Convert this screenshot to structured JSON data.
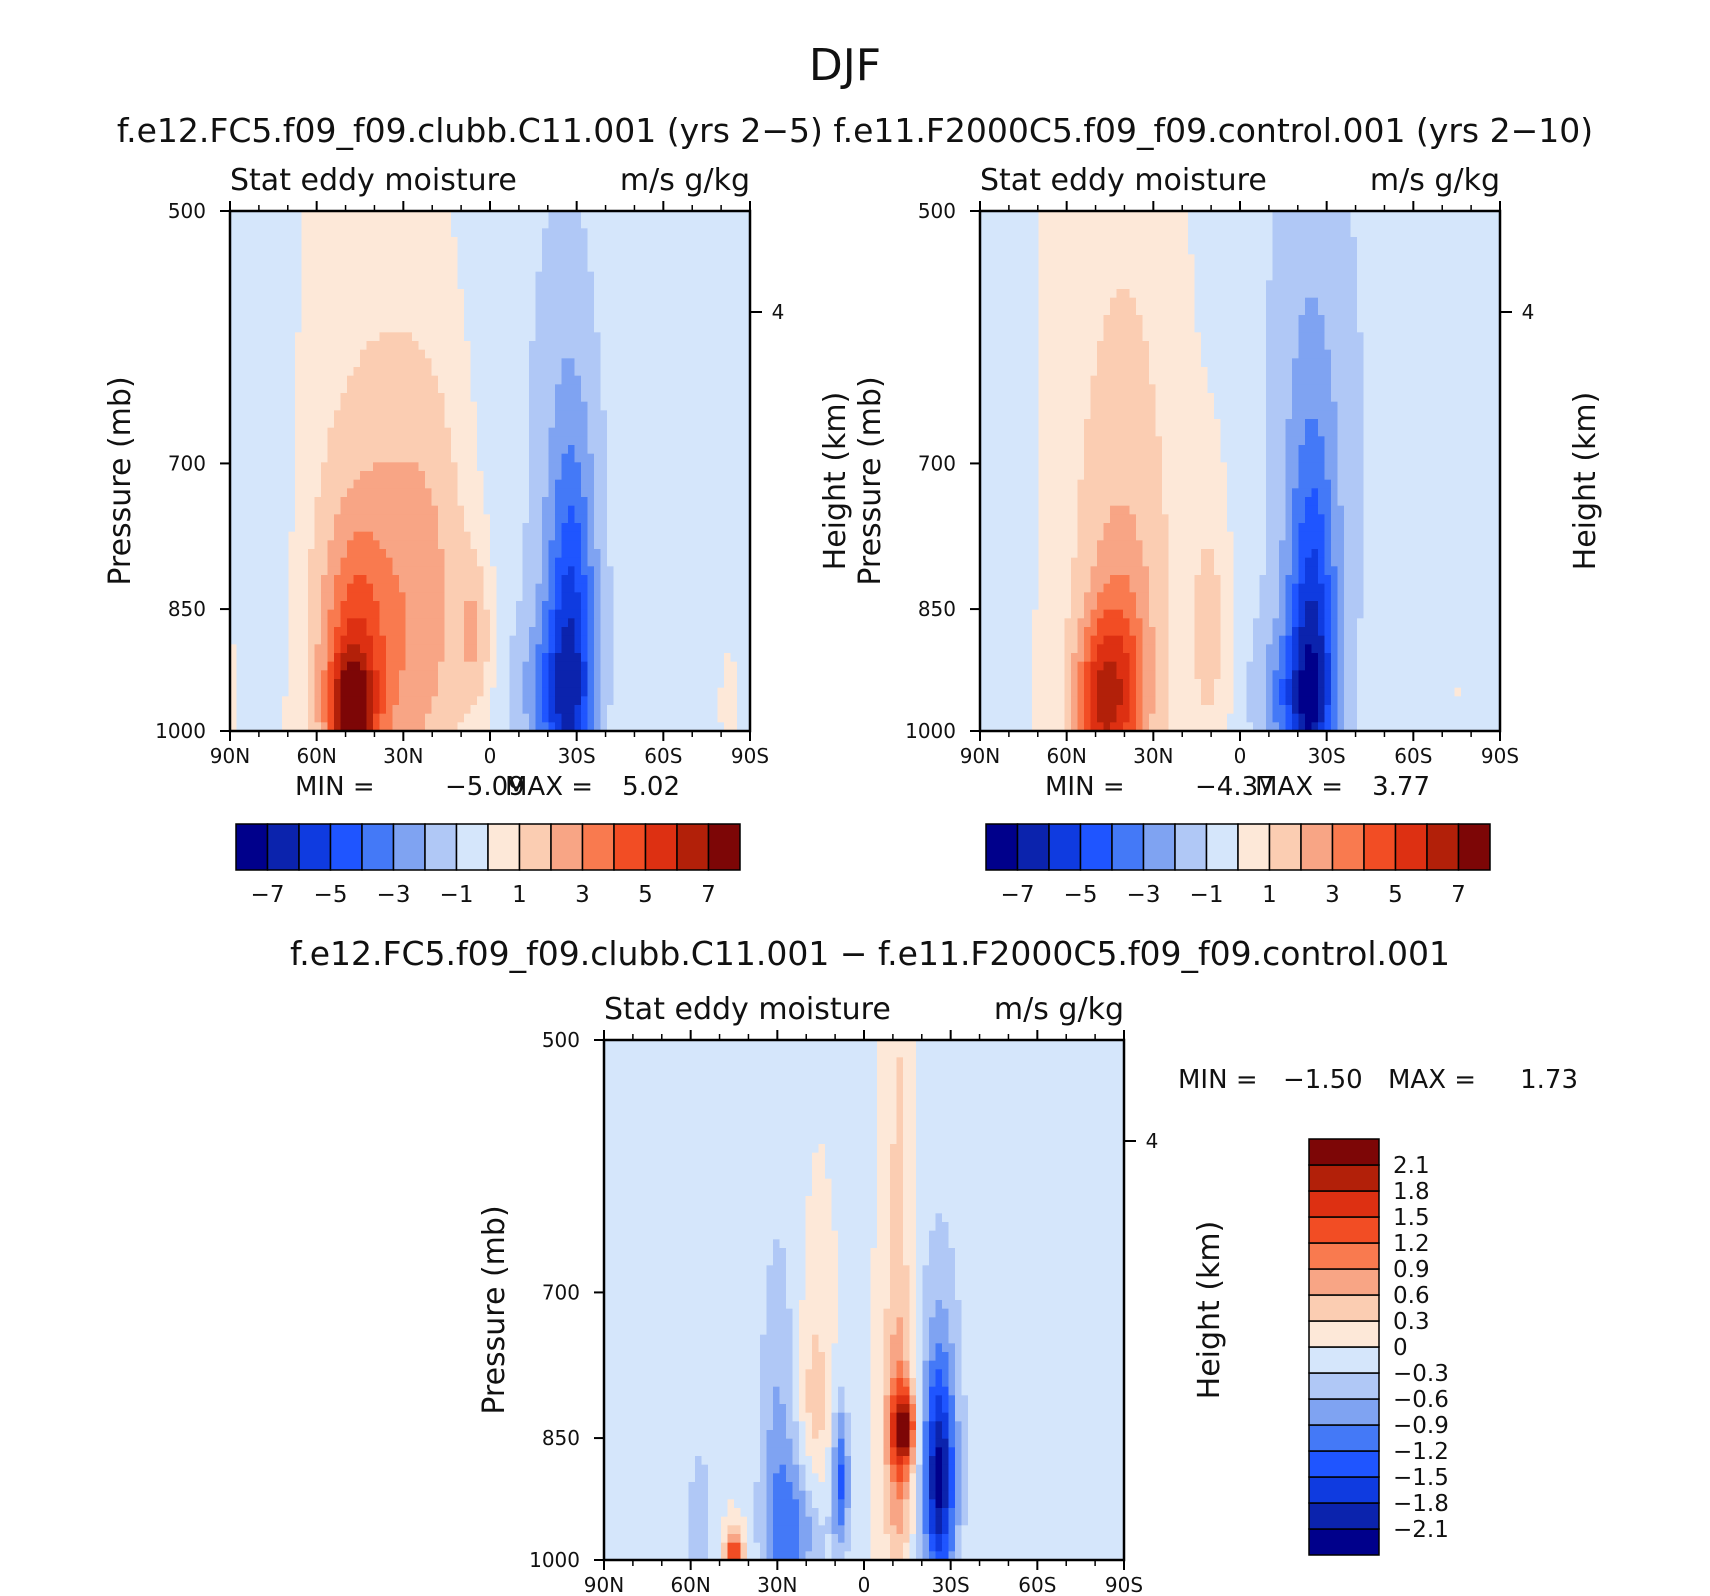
{
  "title": "DJF",
  "case_title": "f.e12.FC5.f09_f09.clubb.C11.001 (yrs 2−5) f.e11.F2000C5.f09_f09.control.001 (yrs 2−10)",
  "diff_title": "f.e12.FC5.f09_f09.clubb.C11.001 − f.e11.F2000C5.f09_f09.control.001",
  "colors": {
    "main_scale": [
      "#00008b",
      "#0b23ad",
      "#0f3be0",
      "#1f55ff",
      "#4479f7",
      "#7fa3f2",
      "#b0c8f6",
      "#d5e6fb",
      "#fde8d8",
      "#fbcdb2",
      "#f8a585",
      "#f97a4f",
      "#f24d24",
      "#dd3012",
      "#b22009",
      "#7d0606"
    ],
    "diff_scale": [
      "#00008b",
      "#0b23ad",
      "#0f3be0",
      "#1f55ff",
      "#4479f7",
      "#7fa3f2",
      "#b0c8f6",
      "#d5e6fb",
      "#fde8d8",
      "#fbcdb2",
      "#f8a585",
      "#f97a4f",
      "#f24d24",
      "#dd3012",
      "#b22009",
      "#7d0606"
    ]
  },
  "chart_data": [
    {
      "type": "heatmap",
      "panel": "model",
      "title_left": "Stat eddy moisture",
      "title_right": "m/s g/kg",
      "xlabel": "",
      "ylabel": "Pressure (mb)",
      "ylabel_right": "Height (km)",
      "x_ticks": [
        "90N",
        "60N",
        "30N",
        "0",
        "30S",
        "60S",
        "90S"
      ],
      "y_ticks": [
        "500",
        "700",
        "850",
        "1000"
      ],
      "right_ticks": [
        "4"
      ],
      "xlim": [
        90,
        -90
      ],
      "ylim": [
        1000,
        500
      ],
      "stats": {
        "min_label": "MIN =",
        "min_value": "−5.09",
        "max_label": "MAX =",
        "max_value": "5.02"
      },
      "levels": [
        -7,
        -6,
        -5,
        -4,
        -3,
        -2,
        -1,
        0,
        1,
        2,
        3,
        4,
        5,
        6,
        7
      ],
      "colorbar_labels": [
        "−7",
        "−5",
        "−3",
        "−1",
        "1",
        "3",
        "5",
        "7"
      ],
      "features": [
        {
          "lat": 40,
          "p": 900,
          "wlat": 24,
          "wp": 320,
          "value": 2.2
        },
        {
          "lat": 48,
          "p": 980,
          "wlat": 7,
          "wp": 70,
          "value": 4.8
        },
        {
          "lat": 47,
          "p": 920,
          "wlat": 11,
          "wp": 150,
          "value": 3.2
        },
        {
          "lat": 20,
          "p": 820,
          "wlat": 16,
          "wp": 230,
          "value": 1.6
        },
        {
          "lat": 5,
          "p": 880,
          "wlat": 6,
          "wp": 90,
          "value": 1.8
        },
        {
          "lat": 75,
          "p": 700,
          "wlat": 8,
          "wp": 380,
          "value": -0.9
        },
        {
          "lat": -28,
          "p": 920,
          "wlat": 9,
          "wp": 260,
          "value": -5.09
        },
        {
          "lat": -20,
          "p": 950,
          "wlat": 12,
          "wp": 90,
          "value": -2.0
        },
        {
          "lat": -15,
          "p": 650,
          "wlat": 30,
          "wp": 500,
          "value": -0.9
        },
        {
          "lat": -70,
          "p": 650,
          "wlat": 25,
          "wp": 500,
          "value": -0.8
        },
        {
          "lat": -82,
          "p": 950,
          "wlat": 5,
          "wp": 110,
          "value": 0.6
        }
      ]
    },
    {
      "type": "heatmap",
      "panel": "control",
      "title_left": "Stat eddy moisture",
      "title_right": "m/s g/kg",
      "xlabel": "",
      "ylabel": "Pressure (mb)",
      "ylabel_right": "Height (km)",
      "x_ticks": [
        "90N",
        "60N",
        "30N",
        "0",
        "30S",
        "60S",
        "90S"
      ],
      "y_ticks": [
        "500",
        "700",
        "850",
        "1000"
      ],
      "right_ticks": [
        "4"
      ],
      "xlim": [
        90,
        -90
      ],
      "ylim": [
        1000,
        500
      ],
      "stats": {
        "min_label": "MIN =",
        "min_value": "−4.37",
        "max_label": "MAX =",
        "max_value": "3.77"
      },
      "levels": [
        -7,
        -6,
        -5,
        -4,
        -3,
        -2,
        -1,
        0,
        1,
        2,
        3,
        4,
        5,
        6,
        7
      ],
      "colorbar_labels": [
        "−7",
        "−5",
        "−3",
        "−1",
        "1",
        "3",
        "5",
        "7"
      ],
      "features": [
        {
          "lat": 40,
          "p": 820,
          "wlat": 20,
          "wp": 340,
          "value": 1.9
        },
        {
          "lat": 42,
          "p": 950,
          "wlat": 10,
          "wp": 130,
          "value": 3.5
        },
        {
          "lat": 50,
          "p": 960,
          "wlat": 8,
          "wp": 90,
          "value": 3.0
        },
        {
          "lat": 10,
          "p": 870,
          "wlat": 7,
          "wp": 170,
          "value": 1.5
        },
        {
          "lat": 80,
          "p": 650,
          "wlat": 8,
          "wp": 430,
          "value": -0.8
        },
        {
          "lat": -25,
          "p": 930,
          "wlat": 8,
          "wp": 230,
          "value": -4.37
        },
        {
          "lat": -18,
          "p": 960,
          "wlat": 13,
          "wp": 90,
          "value": -2.3
        },
        {
          "lat": -25,
          "p": 800,
          "wlat": 14,
          "wp": 380,
          "value": -1.3
        },
        {
          "lat": -20,
          "p": 620,
          "wlat": 35,
          "wp": 480,
          "value": -0.8
        },
        {
          "lat": -70,
          "p": 650,
          "wlat": 25,
          "wp": 500,
          "value": -0.8
        },
        {
          "lat": -76,
          "p": 930,
          "wlat": 5,
          "wp": 120,
          "value": 0.6
        }
      ]
    },
    {
      "type": "heatmap",
      "panel": "difference",
      "title_left": "Stat eddy moisture",
      "title_right": "m/s g/kg",
      "xlabel": "",
      "ylabel": "Pressure (mb)",
      "ylabel_right": "Height (km)",
      "x_ticks": [
        "90N",
        "60N",
        "30N",
        "0",
        "30S",
        "60S",
        "90S"
      ],
      "y_ticks": [
        "500",
        "700",
        "850",
        "1000"
      ],
      "right_ticks": [
        "4"
      ],
      "xlim": [
        90,
        -90
      ],
      "ylim": [
        1000,
        500
      ],
      "stats": {
        "min_label": "MIN =",
        "min_value": "−1.50",
        "max_label": "MAX =",
        "max_value": "1.73"
      },
      "levels": [
        -2.1,
        -1.8,
        -1.5,
        -1.2,
        -0.9,
        -0.6,
        -0.3,
        0,
        0.3,
        0.6,
        0.9,
        1.2,
        1.5,
        1.8,
        2.1
      ],
      "colorbar_labels": [
        "2.1",
        "1.8",
        "1.5",
        "1.2",
        "0.9",
        "0.6",
        "0.3",
        "0",
        "−0.3",
        "−0.6",
        "−0.9",
        "−1.2",
        "−1.5",
        "−1.8",
        "−2.1"
      ],
      "features": [
        {
          "lat": 30,
          "p": 880,
          "wlat": 7,
          "wp": 260,
          "value": -0.65
        },
        {
          "lat": 23,
          "p": 960,
          "wlat": 10,
          "wp": 90,
          "value": -0.8
        },
        {
          "lat": 8,
          "p": 900,
          "wlat": 3,
          "wp": 90,
          "value": -1.2
        },
        {
          "lat": -26,
          "p": 900,
          "wlat": 5,
          "wp": 120,
          "value": -1.5
        },
        {
          "lat": -26,
          "p": 880,
          "wlat": 8,
          "wp": 230,
          "value": -0.7
        },
        {
          "lat": -12,
          "p": 860,
          "wlat": 5,
          "wp": 130,
          "value": 0.9
        },
        {
          "lat": -14,
          "p": 840,
          "wlat": 4,
          "wp": 40,
          "value": 1.73
        },
        {
          "lat": 17,
          "p": 820,
          "wlat": 5,
          "wp": 120,
          "value": 0.5
        },
        {
          "lat": 45,
          "p": 990,
          "wlat": 3,
          "wp": 30,
          "value": 1.5
        },
        {
          "lat": -12,
          "p": 650,
          "wlat": 5,
          "wp": 350,
          "value": 0.4
        },
        {
          "lat": 57,
          "p": 960,
          "wlat": 5,
          "wp": 110,
          "value": -0.55
        },
        {
          "lat": -45,
          "p": 650,
          "wlat": 35,
          "wp": 500,
          "value": -0.1
        }
      ]
    }
  ]
}
